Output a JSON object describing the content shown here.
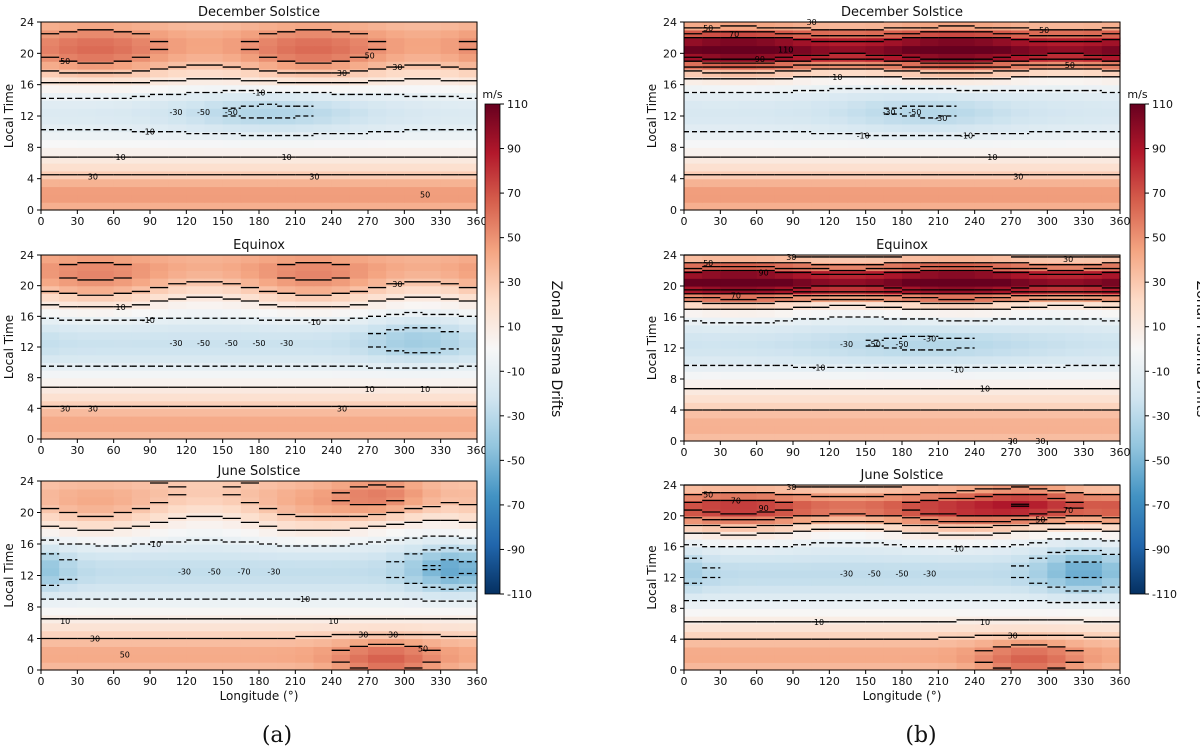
{
  "figure": {
    "colorbar": {
      "unit": "m/s",
      "label": "Zonal Plasma Drifts",
      "ticks": [
        110,
        90,
        70,
        50,
        30,
        10,
        -10,
        -30,
        -50,
        -70,
        -90,
        -110
      ],
      "range": [
        -110,
        110
      ]
    },
    "subfigure_labels": [
      "(a)",
      "(b)"
    ]
  },
  "chart_data": [
    {
      "type": "heatmap",
      "group": "a",
      "title": "December Solstice",
      "xlabel": "",
      "ylabel": "Local Time",
      "xlim": [
        0,
        360
      ],
      "ylim": [
        0,
        24
      ],
      "xticks": [
        0,
        30,
        60,
        90,
        120,
        150,
        180,
        210,
        240,
        270,
        300,
        330,
        360
      ],
      "yticks": [
        0,
        4,
        8,
        12,
        16,
        20,
        24
      ],
      "contour_labels": [
        "50",
        "30",
        "10",
        "-10",
        "-30",
        "-50",
        "-50",
        "-10",
        "10",
        "30",
        "30",
        "50",
        "30",
        "50"
      ]
    },
    {
      "type": "heatmap",
      "group": "a",
      "title": "Equinox",
      "xlabel": "",
      "ylabel": "Local Time",
      "xlim": [
        0,
        360
      ],
      "ylim": [
        0,
        24
      ],
      "xticks": [
        0,
        30,
        60,
        90,
        120,
        150,
        180,
        210,
        240,
        270,
        300,
        330,
        360
      ],
      "yticks": [
        0,
        4,
        8,
        12,
        16,
        20,
        24
      ],
      "contour_labels": [
        "30",
        "30",
        "10",
        "-10",
        "-30",
        "-50",
        "-50",
        "-50",
        "-30",
        "-10",
        "30",
        "10",
        "30",
        "10"
      ]
    },
    {
      "type": "heatmap",
      "group": "a",
      "title": "June Solstice",
      "xlabel": "Longitude (°)",
      "ylabel": "Local Time",
      "xlim": [
        0,
        360
      ],
      "ylim": [
        0,
        24
      ],
      "xticks": [
        0,
        30,
        60,
        90,
        120,
        150,
        180,
        210,
        240,
        270,
        300,
        330,
        360
      ],
      "yticks": [
        0,
        4,
        8,
        12,
        16,
        20,
        24
      ],
      "contour_labels": [
        "10",
        "30",
        "50",
        "-10",
        "-30",
        "-50",
        "-70",
        "-30",
        "-10",
        "10",
        "30",
        "30",
        "50"
      ]
    },
    {
      "type": "heatmap",
      "group": "b",
      "title": "December Solstice",
      "xlabel": "",
      "ylabel": "Local Time",
      "xlim": [
        0,
        360
      ],
      "ylim": [
        0,
        24
      ],
      "xticks": [
        0,
        30,
        60,
        90,
        120,
        150,
        180,
        210,
        240,
        270,
        300,
        330,
        360
      ],
      "yticks": [
        0,
        4,
        8,
        12,
        16,
        20,
        24
      ],
      "contour_labels": [
        "50",
        "70",
        "90",
        "110",
        "30",
        "10",
        "-10",
        "-30",
        "-50",
        "-30",
        "-10",
        "10",
        "30",
        "50",
        "50"
      ]
    },
    {
      "type": "heatmap",
      "group": "b",
      "title": "Equinox",
      "xlabel": "",
      "ylabel": "Local Time",
      "xlim": [
        0,
        360
      ],
      "ylim": [
        0,
        24
      ],
      "xticks": [
        0,
        30,
        60,
        90,
        120,
        150,
        180,
        210,
        240,
        270,
        300,
        330,
        360
      ],
      "yticks": [
        0,
        4,
        8,
        12,
        16,
        20,
        24
      ],
      "contour_labels": [
        "50",
        "70",
        "90",
        "30",
        "-10",
        "-30",
        "-50",
        "-50",
        "-30",
        "-10",
        "10",
        "30",
        "30",
        "30"
      ]
    },
    {
      "type": "heatmap",
      "group": "b",
      "title": "June Solstice",
      "xlabel": "Longitude (°)",
      "ylabel": "Local Time",
      "xlim": [
        0,
        360
      ],
      "ylim": [
        0,
        24
      ],
      "xticks": [
        0,
        30,
        60,
        90,
        120,
        150,
        180,
        210,
        240,
        270,
        300,
        330,
        360
      ],
      "yticks": [
        0,
        4,
        8,
        12,
        16,
        20,
        24
      ],
      "contour_labels": [
        "50",
        "70",
        "90",
        "30",
        "10",
        "-30",
        "-50",
        "-50",
        "-30",
        "-10",
        "10",
        "30",
        "50",
        "70"
      ]
    }
  ]
}
